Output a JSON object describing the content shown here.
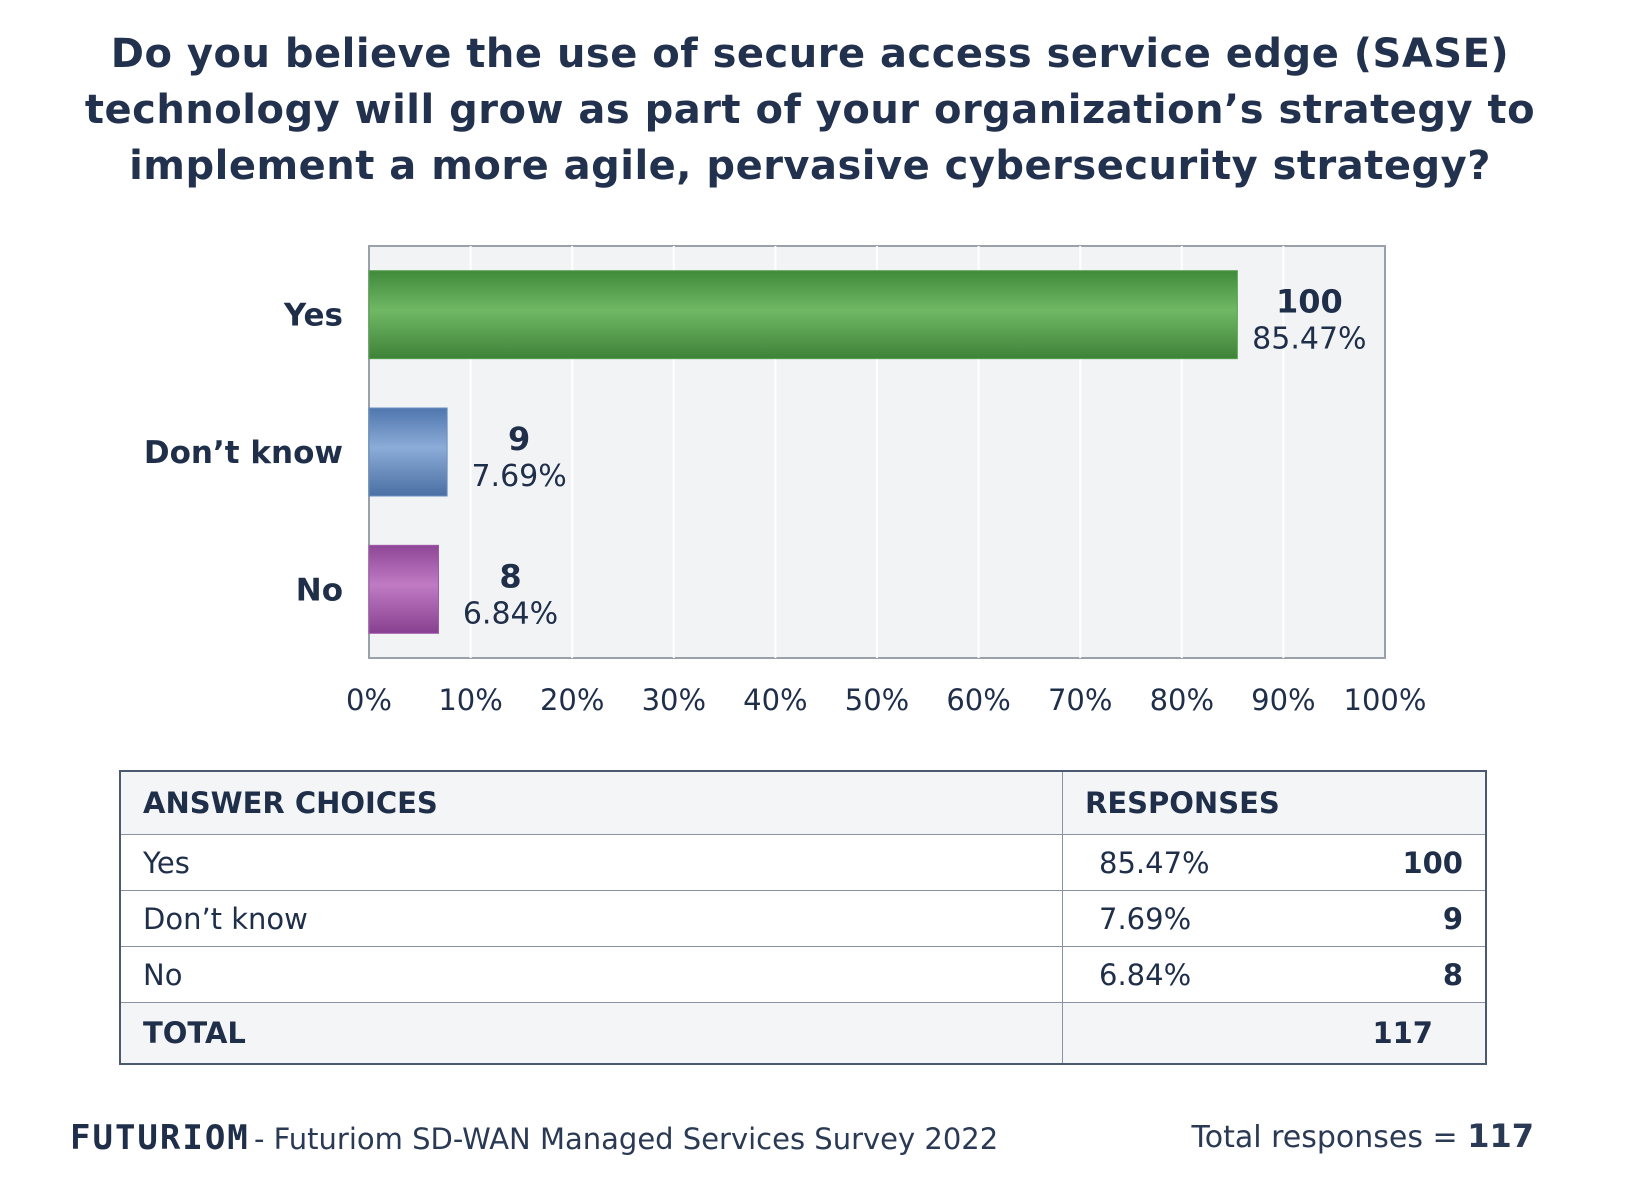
{
  "title_lines": [
    "Do you believe the use of secure access service edge (SASE)",
    "technology will grow as part of your organization’s strategy to",
    "implement a more agile, pervasive cybersecurity strategy?"
  ],
  "chart_data": {
    "type": "bar",
    "orientation": "horizontal",
    "categories": [
      "Yes",
      "Don’t know",
      "No"
    ],
    "values": [
      85.47,
      7.69,
      6.84
    ],
    "counts": [
      "100",
      "9",
      "8"
    ],
    "value_labels": [
      "85.47%",
      "7.69%",
      "6.84%"
    ],
    "colors": [
      "#5aa152",
      "#6a8fc3",
      "#a15aa8"
    ],
    "xlim": [
      0,
      100
    ],
    "x_ticks": [
      "0%",
      "10%",
      "20%",
      "30%",
      "40%",
      "50%",
      "60%",
      "70%",
      "80%",
      "90%",
      "100%"
    ],
    "grid": true
  },
  "table": {
    "headers": [
      "ANSWER CHOICES",
      "RESPONSES"
    ],
    "rows": [
      {
        "choice": "Yes",
        "percent": "85.47%",
        "count": "100"
      },
      {
        "choice": "Don’t know",
        "percent": "7.69%",
        "count": "9"
      },
      {
        "choice": "No",
        "percent": "6.84%",
        "count": "8"
      }
    ],
    "total_label": "TOTAL",
    "total_value": "117"
  },
  "footer": {
    "logo": "FUTURIOM",
    "source": "- Futuriom SD-WAN Managed Services Survey 2022",
    "total_label": "Total responses = ",
    "total_value": "117"
  }
}
